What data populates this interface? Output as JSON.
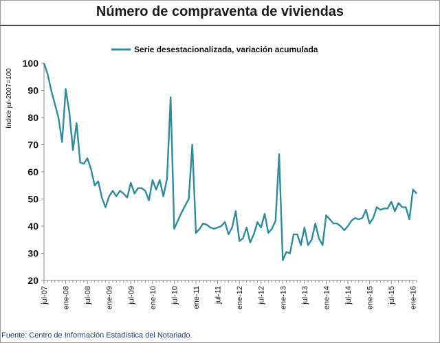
{
  "title": "Número de compraventa de viviendas",
  "source": "Fuente: Centro de Información Estadística del Notariado.",
  "chart_data": {
    "type": "line",
    "ylabel": "Índice jul-2007=100",
    "xlabel": "",
    "ylim": [
      20,
      100
    ],
    "yticks": [
      20,
      30,
      40,
      50,
      60,
      70,
      80,
      90,
      100
    ],
    "grid": false,
    "legend_position": "top",
    "line_color": "#2e8b9c",
    "x_tick_labels": [
      "jul-07",
      "ene-08",
      "jul-08",
      "ene-09",
      "jul-09",
      "ene-10",
      "jul-10",
      "ene-11",
      "jul-11",
      "ene-12",
      "jul-12",
      "ene-13",
      "jul-13",
      "ene-14",
      "jul-14",
      "ene-15",
      "jul-15",
      "ene-16"
    ],
    "series": [
      {
        "name": "Serie desestacionalizada, variación acumulada",
        "values": [
          100,
          96,
          90,
          85,
          80,
          71,
          90.5,
          82,
          68,
          78,
          63.5,
          63,
          65,
          61,
          55,
          56.5,
          50.5,
          47,
          51,
          53,
          51,
          53,
          52,
          50.5,
          56,
          52,
          54,
          54,
          53,
          49.5,
          57,
          53.5,
          57,
          51,
          57.5,
          87.5,
          39,
          42,
          45,
          47.5,
          50,
          70,
          37.5,
          39,
          41,
          40.5,
          39.5,
          39,
          39.5,
          40,
          41.5,
          37,
          39.5,
          45.5,
          34.5,
          35.5,
          39.5,
          34,
          37,
          41.5,
          39.5,
          44.5,
          37.5,
          39,
          42,
          66.5,
          27.5,
          30.5,
          30,
          37,
          37,
          33,
          39.5,
          33,
          35,
          41,
          35.5,
          33,
          44,
          42.5,
          41,
          41,
          40,
          38.5,
          40,
          42,
          43,
          42.5,
          43,
          46,
          41,
          43,
          47,
          46,
          46.5,
          46.5,
          49,
          45.5,
          48.5,
          47,
          47,
          42.5,
          53.5,
          52
        ]
      }
    ]
  }
}
